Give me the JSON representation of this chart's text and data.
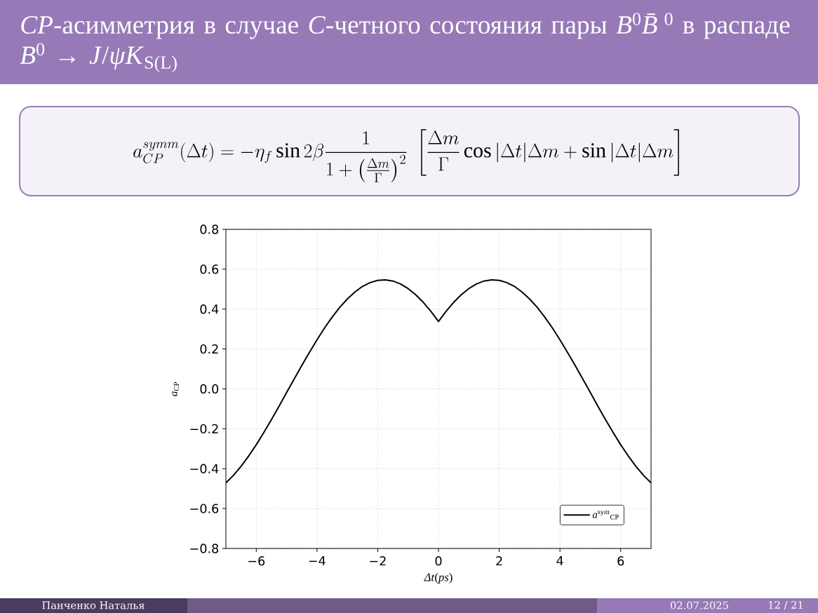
{
  "chart_data": {
    "type": "line",
    "title": "*CP*-асимметрия в случае *C*-четного состояния пары *B*$^{0}$*B̄*$^{0}$ в распаде *B*$^{0}$ → *J*/*ψK*$_{S(L)}$",
    "xlabel": "*Δt*(*ps*)",
    "ylabel": "*a*$_{CP}$",
    "annotations": [
      "a^{symm}_{CP}(\\Delta t) = -\\eta_f \\sin 2\\beta\\frac{1}{1+\\left(\\frac{\\Delta m}{\\Gamma}\\right)^2}\\;\\left[\\frac{\\Delta m}{\\Gamma}\\cos|\\Delta t|\\Delta m+\\sin|\\Delta t|\\Delta m\\right]",
      "Панченко Наталья",
      "02.07.2025",
      "12 / 21"
    ],
    "x": [
      -7,
      -6.75,
      -6.5,
      -6.25,
      -6,
      -5.75,
      -5.5,
      -5.25,
      -5,
      -4.75,
      -4.5,
      -4.25,
      -4,
      -3.75,
      -3.5,
      -3.25,
      -3,
      -2.75,
      -2.5,
      -2.25,
      -2,
      -1.75,
      -1.5,
      -1.25,
      -1,
      -0.75,
      -0.5,
      -0.25,
      0,
      0.25,
      0.5,
      0.75,
      1,
      1.25,
      1.5,
      1.75,
      2,
      2.25,
      2.5,
      2.75,
      3,
      3.25,
      3.5,
      3.75,
      4,
      4.25,
      4.5,
      4.75,
      5,
      5.25,
      5.5,
      5.75,
      6,
      6.25,
      6.5,
      6.75,
      7
    ],
    "series": [
      {
        "name": "*a*$^{sym}$$_{CP}$",
        "color": "#000000",
        "values": [
          -0.471,
          -0.433,
          -0.388,
          -0.336,
          -0.28,
          -0.218,
          -0.154,
          -0.087,
          -0.018,
          0.05,
          0.118,
          0.183,
          0.246,
          0.306,
          0.36,
          0.409,
          0.451,
          0.486,
          0.514,
          0.533,
          0.544,
          0.547,
          0.541,
          0.526,
          0.503,
          0.472,
          0.434,
          0.389,
          0.338,
          0.389,
          0.434,
          0.472,
          0.503,
          0.526,
          0.541,
          0.547,
          0.544,
          0.533,
          0.514,
          0.486,
          0.451,
          0.409,
          0.36,
          0.306,
          0.246,
          0.183,
          0.118,
          0.05,
          -0.018,
          -0.087,
          -0.154,
          -0.218,
          -0.28,
          -0.336,
          -0.388,
          -0.433,
          -0.471
        ]
      }
    ],
    "xlim": [
      -7,
      7
    ],
    "ylim": [
      -0.8,
      0.8
    ],
    "xticks": [
      {
        "value": -6,
        "label": "−6"
      },
      {
        "value": -4,
        "label": "−4"
      },
      {
        "value": -2,
        "label": "−2"
      },
      0,
      2,
      4,
      6
    ],
    "yticks": [
      {
        "value": -0.8,
        "label": "−0.8"
      },
      {
        "value": -0.6,
        "label": "−0.6"
      },
      {
        "value": -0.4,
        "label": "−0.4"
      },
      {
        "value": -0.2,
        "label": "−0.2"
      },
      {
        "value": 0,
        "label": "0.0"
      },
      0.2,
      0.4,
      0.6,
      0.8
    ],
    "grid": true,
    "legend": "bottom right"
  }
}
